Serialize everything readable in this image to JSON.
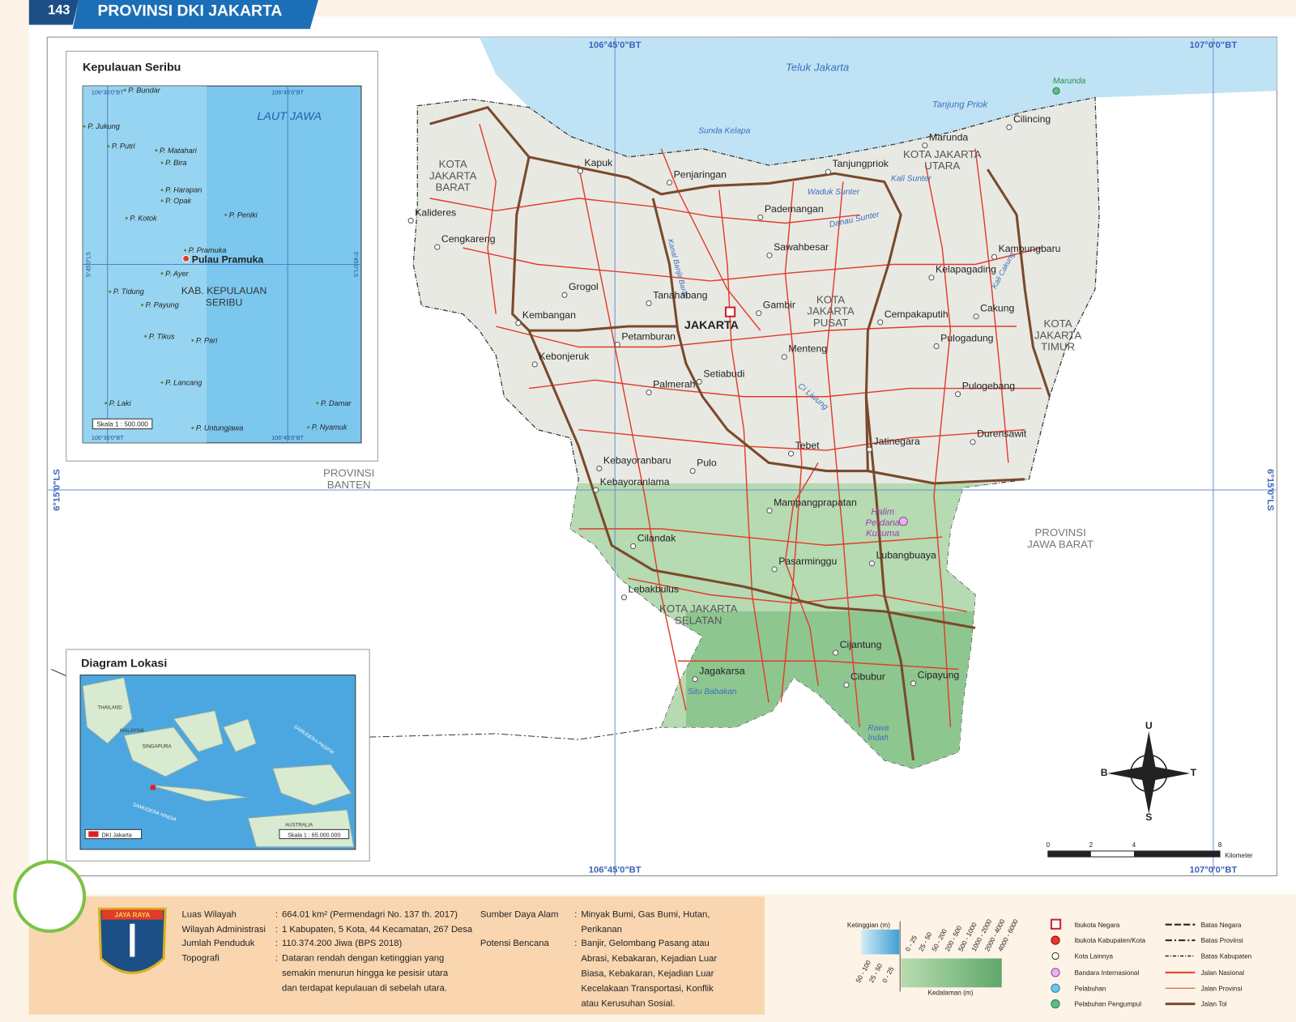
{
  "header": {
    "page_number": "143",
    "title": "PROVINSI DKI JAKARTA"
  },
  "map": {
    "grid_labels": [
      "106°45'0\"BT",
      "107°0'0\"BT",
      "6°15'0\"LS"
    ],
    "water_labels": [
      "Teluk Jakarta",
      "Tanjung Priok",
      "Sunda Kelapa",
      "Kali Sunter",
      "Waduk Sunter",
      "Danau Sunter",
      "Kanal Banjir Barat",
      "Kali Cakung",
      "Ci Liwung",
      "Situ Babakan",
      [
        "Rawa",
        "Indah"
      ]
    ],
    "port": "Marunda",
    "places": [
      "Cilincing",
      "Marunda",
      "Kapuk",
      "Penjaringan",
      "Tanjungpriok",
      "Pademangan",
      "Kalideres",
      "Cengkareng",
      "Sawahbesar",
      "Kampungbaru",
      "Kelapagading",
      "Grogol",
      "Tanahabang",
      "Gambir",
      "Cempakaputih",
      "Cakung",
      "Kembangan",
      "Petamburan",
      "Pulogadung",
      "Menteng",
      "Kebonjeruk",
      "Setiabudi",
      "Palmerah",
      "Pulogebang",
      "Durensawit",
      "Tebet",
      "Jatinegara",
      "Kebayoranbaru",
      "Pulo",
      "Kebayoranlama",
      "Mampangprapatan",
      "Cilandak",
      "Pasarminggu",
      "Lubangbuaya",
      "Lebakbulus",
      "Cijantung",
      "Jagakarsa",
      "Cibubur",
      "Cipayung"
    ],
    "capital": "JAKARTA",
    "regions": [
      [
        "KOTA",
        "JAKARTA",
        "BARAT"
      ],
      [
        "KOTA JAKARTA",
        "UTARA"
      ],
      [
        "KOTA",
        "JAKARTA",
        "PUSAT"
      ],
      [
        "KOTA",
        "JAKARTA",
        "TIMUR"
      ],
      [
        "KOTA JAKARTA",
        "SELATAN"
      ],
      [
        "PROVINSI",
        "BANTEN"
      ],
      [
        "PROVINSI",
        "JAWA BARAT"
      ]
    ],
    "airport": [
      "Halim",
      "Perdana",
      "Kusuma"
    ],
    "compass": [
      "U",
      "S",
      "B",
      "T"
    ],
    "scale": {
      "ticks": [
        "0",
        "2",
        "4",
        "8"
      ],
      "unit": "Kilometer"
    }
  },
  "inset_seribu": {
    "title": "Kepulauan Seribu",
    "sea": "LAUT  JAWA",
    "grid_labels": [
      "106°30'0\"BT",
      "106°45'0\"BT",
      "5°45'0\"LS"
    ],
    "islands": [
      "P. Bundar",
      "P. Jukung",
      "P. Putri",
      "P. Matahari",
      "P. Bira",
      "P. Harapan",
      "P. Opak",
      "P. Kotok",
      "P. Peniki",
      "P. Pramuka",
      "P. Ayer",
      "P. Tidung",
      "P. Payung",
      "P. Tikus",
      "P. Pari",
      "P. Lancang",
      "P. Laki",
      "P. Damar",
      "P. Untungjawa",
      "P. Nyamuk"
    ],
    "capital": "Pulau Pramuka",
    "region": [
      "KAB. KEPULAUAN",
      "SERIBU"
    ],
    "scale": "Skala 1 : 500.000"
  },
  "inset_lokasi": {
    "title": "Diagram Lokasi",
    "labels": [
      "SAMUDERA PASIFIK",
      "SAMUDERA HINDIA",
      "THAILAND",
      "MALAYSIA",
      "SINGAPURA",
      "AUSTRALIA"
    ],
    "legend": "DKI Jakarta",
    "scale": "Skala 1 : 65.000.000"
  },
  "info": {
    "logo": "JAYA RAYA",
    "separator": ":",
    "rows": [
      {
        "label": "Luas Wilayah",
        "value": [
          "664.01 km² (Permendagri No. 137 th.  2017)"
        ]
      },
      {
        "label": "Wilayah Administrasi",
        "value": [
          "1 Kabupaten, 5 Kota, 44 Kecamatan, 267 Desa"
        ]
      },
      {
        "label": "Jumlah Penduduk",
        "value": [
          "110.374.200 Jiwa (BPS 2018)"
        ]
      },
      {
        "label": "Topografi",
        "value": [
          "Dataran rendah dengan ketinggian yang",
          "semakin menurun hingga ke pesisir utara",
          "dan terdapat kepulauan di sebelah utara."
        ]
      },
      {
        "label": "Sumber Daya Alam",
        "value": [
          "Minyak Bumi, Gas Bumi, Hutan,",
          "Perikanan"
        ]
      },
      {
        "label": "Potensi Bencana",
        "value": [
          "Banjir, Gelombang Pasang atau",
          "Abrasi, Kebakaran, Kejadian Luar",
          "Biasa, Kebakaran, Kejadian Luar",
          "Kecelakaan Transportasi, Konflik",
          "atau Kerusuhan Sosial."
        ]
      }
    ]
  },
  "legend": {
    "elevation_title": "Ketinggian (m)",
    "depth_title": "Kedalaman (m)",
    "elevation": [
      "0 - 25",
      "25 - 50",
      "50 - 200",
      "200 - 500",
      "500 - 1000",
      "1000 - 2000",
      "2000 - 4000",
      "4000 - 6000"
    ],
    "depth": [
      "50 - 100",
      "25 - 50",
      "0 - 25"
    ],
    "symbols": [
      "Ibukota Negara",
      "Ibukota Kabupaten/Kota",
      "Kota Lainnya",
      "Bandara Internasional",
      "Pelabuhan",
      "Pelabuhan Pengumpul"
    ],
    "lines": [
      "Batas Negara",
      "Batas Provinsi",
      "Batas Kabupaten",
      "Jalan Nasional",
      "Jalan Provinsi",
      "Jalan Tol"
    ]
  }
}
